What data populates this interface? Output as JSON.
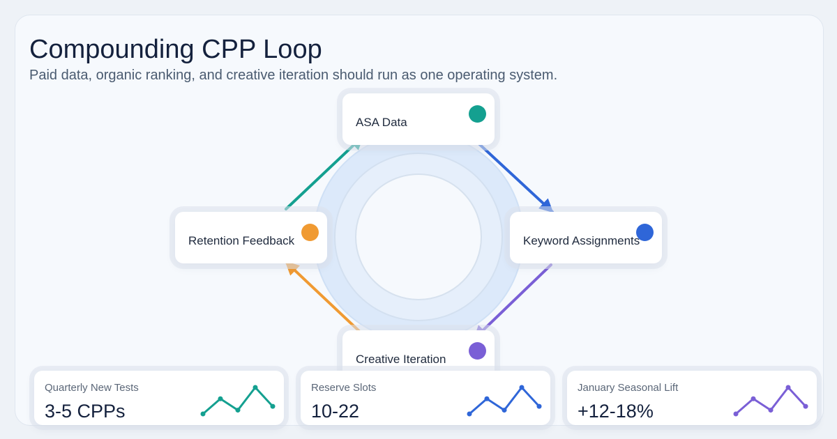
{
  "header": {
    "title": "Compounding CPP Loop",
    "subtitle": "Paid data, organic ranking, and creative iteration should run as one operating system."
  },
  "nodes": [
    {
      "id": "asa-data",
      "label": "ASA Data",
      "color": "#14a090"
    },
    {
      "id": "keyword-assignments",
      "label": "Keyword Assignments",
      "color": "#2f66d8"
    },
    {
      "id": "creative-iteration",
      "label": "Creative Iteration",
      "color": "#7a5fd6"
    },
    {
      "id": "retention-feedback",
      "label": "Retention Feedback",
      "color": "#f09a32"
    }
  ],
  "metrics": [
    {
      "label": "Quarterly New Tests",
      "value": "3-5 CPPs",
      "color": "#14a090",
      "trend": [
        2,
        6,
        3,
        9,
        4
      ]
    },
    {
      "label": "Reserve Slots",
      "value": "10-22",
      "color": "#2f66d8",
      "trend": [
        2,
        6,
        3,
        9,
        4
      ]
    },
    {
      "label": "January Seasonal Lift",
      "value": "+12-18%",
      "color": "#7a5fd6",
      "trend": [
        2,
        6,
        3,
        9,
        4
      ]
    }
  ]
}
